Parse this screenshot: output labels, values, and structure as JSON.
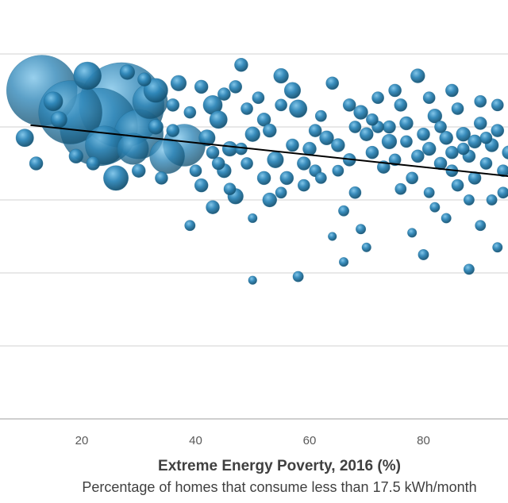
{
  "chart_data": {
    "type": "scatter",
    "subtype": "bubble",
    "xlabel": "Extreme Energy Poverty, 2016 (%)",
    "xlabel_sub": "Percentage of homes that consume less than 17.5 kWh/month",
    "ylabel": "",
    "x_ticks": [
      20,
      40,
      60,
      80
    ],
    "xlim": [
      7,
      95
    ],
    "ylim": [
      0,
      100
    ],
    "grid": true,
    "legend": "none",
    "colors": {
      "bubble": "#2e86b8",
      "bubble_dark": "#14506f",
      "trendline": "#000000",
      "grid": "#d9d9d9"
    },
    "trendline": {
      "x": [
        11,
        95
      ],
      "y": [
        80.5,
        66.5
      ]
    },
    "series": [
      {
        "points": [
          {
            "x": 13,
            "y": 90,
            "s": 9.0
          },
          {
            "x": 18,
            "y": 84,
            "s": 8.0
          },
          {
            "x": 27,
            "y": 86,
            "s": 11.0
          },
          {
            "x": 23,
            "y": 80,
            "s": 10.0
          },
          {
            "x": 30,
            "y": 78,
            "s": 6.0
          },
          {
            "x": 32,
            "y": 87,
            "s": 4.0
          },
          {
            "x": 35,
            "y": 72,
            "s": 4.0
          },
          {
            "x": 21,
            "y": 94,
            "s": 3.0
          },
          {
            "x": 24,
            "y": 75,
            "s": 4.5
          },
          {
            "x": 29,
            "y": 74,
            "s": 3.5
          },
          {
            "x": 33,
            "y": 90,
            "s": 2.5
          },
          {
            "x": 38,
            "y": 75,
            "s": 5.0
          },
          {
            "x": 15,
            "y": 87,
            "s": 1.8
          },
          {
            "x": 10,
            "y": 77,
            "s": 1.6
          },
          {
            "x": 12,
            "y": 70,
            "s": 1.0
          },
          {
            "x": 26,
            "y": 66,
            "s": 2.6
          },
          {
            "x": 37,
            "y": 92,
            "s": 1.3
          },
          {
            "x": 43,
            "y": 86,
            "s": 1.8
          },
          {
            "x": 44,
            "y": 82,
            "s": 1.6
          },
          {
            "x": 42,
            "y": 77,
            "s": 1.4
          },
          {
            "x": 46,
            "y": 74,
            "s": 1.2
          },
          {
            "x": 48,
            "y": 97,
            "s": 1.0
          },
          {
            "x": 55,
            "y": 94,
            "s": 1.2
          },
          {
            "x": 57,
            "y": 90,
            "s": 1.4
          },
          {
            "x": 58,
            "y": 85,
            "s": 1.6
          },
          {
            "x": 52,
            "y": 82,
            "s": 1.0
          },
          {
            "x": 50,
            "y": 78,
            "s": 1.2
          },
          {
            "x": 54,
            "y": 71,
            "s": 1.4
          },
          {
            "x": 56,
            "y": 66,
            "s": 1.0
          },
          {
            "x": 47,
            "y": 61,
            "s": 1.3
          },
          {
            "x": 53,
            "y": 60,
            "s": 1.1
          },
          {
            "x": 41,
            "y": 64,
            "s": 1.0
          },
          {
            "x": 44,
            "y": 70,
            "s": 0.9
          },
          {
            "x": 40,
            "y": 68,
            "s": 0.8
          },
          {
            "x": 36,
            "y": 86,
            "s": 0.9
          },
          {
            "x": 51,
            "y": 88,
            "s": 0.8
          },
          {
            "x": 60,
            "y": 74,
            "s": 1.0
          },
          {
            "x": 61,
            "y": 68,
            "s": 0.8
          },
          {
            "x": 62,
            "y": 83,
            "s": 0.7
          },
          {
            "x": 64,
            "y": 92,
            "s": 0.9
          },
          {
            "x": 65,
            "y": 75,
            "s": 1.0
          },
          {
            "x": 67,
            "y": 71,
            "s": 0.9
          },
          {
            "x": 68,
            "y": 62,
            "s": 0.8
          },
          {
            "x": 69,
            "y": 84,
            "s": 1.1
          },
          {
            "x": 70,
            "y": 78,
            "s": 1.0
          },
          {
            "x": 71,
            "y": 73,
            "s": 0.9
          },
          {
            "x": 72,
            "y": 80,
            "s": 0.8
          },
          {
            "x": 74,
            "y": 76,
            "s": 1.2
          },
          {
            "x": 75,
            "y": 71,
            "s": 0.8
          },
          {
            "x": 76,
            "y": 86,
            "s": 0.9
          },
          {
            "x": 77,
            "y": 81,
            "s": 1.0
          },
          {
            "x": 78,
            "y": 66,
            "s": 0.8
          },
          {
            "x": 79,
            "y": 94,
            "s": 1.1
          },
          {
            "x": 80,
            "y": 78,
            "s": 0.9
          },
          {
            "x": 81,
            "y": 74,
            "s": 1.0
          },
          {
            "x": 82,
            "y": 83,
            "s": 1.1
          },
          {
            "x": 83,
            "y": 70,
            "s": 0.9
          },
          {
            "x": 84,
            "y": 77,
            "s": 1.0
          },
          {
            "x": 85,
            "y": 73,
            "s": 0.9
          },
          {
            "x": 86,
            "y": 85,
            "s": 0.8
          },
          {
            "x": 87,
            "y": 78,
            "s": 1.1
          },
          {
            "x": 88,
            "y": 72,
            "s": 0.9
          },
          {
            "x": 89,
            "y": 76,
            "s": 1.0
          },
          {
            "x": 90,
            "y": 81,
            "s": 0.9
          },
          {
            "x": 91,
            "y": 70,
            "s": 0.8
          },
          {
            "x": 92,
            "y": 75,
            "s": 1.0
          },
          {
            "x": 93,
            "y": 79,
            "s": 0.9
          },
          {
            "x": 94,
            "y": 68,
            "s": 0.8
          },
          {
            "x": 95,
            "y": 73,
            "s": 1.0
          },
          {
            "x": 66,
            "y": 57,
            "s": 0.6
          },
          {
            "x": 69,
            "y": 52,
            "s": 0.5
          },
          {
            "x": 70,
            "y": 47,
            "s": 0.4
          },
          {
            "x": 66,
            "y": 43,
            "s": 0.4
          },
          {
            "x": 78,
            "y": 51,
            "s": 0.4
          },
          {
            "x": 80,
            "y": 45,
            "s": 0.6
          },
          {
            "x": 82,
            "y": 58,
            "s": 0.5
          },
          {
            "x": 84,
            "y": 55,
            "s": 0.5
          },
          {
            "x": 88,
            "y": 41,
            "s": 0.6
          },
          {
            "x": 90,
            "y": 53,
            "s": 0.6
          },
          {
            "x": 92,
            "y": 60,
            "s": 0.6
          },
          {
            "x": 93,
            "y": 47,
            "s": 0.5
          },
          {
            "x": 58,
            "y": 39,
            "s": 0.6
          },
          {
            "x": 50,
            "y": 38,
            "s": 0.3
          },
          {
            "x": 43,
            "y": 58,
            "s": 1.0
          },
          {
            "x": 39,
            "y": 53,
            "s": 0.6
          },
          {
            "x": 50,
            "y": 55,
            "s": 0.4
          },
          {
            "x": 64,
            "y": 50,
            "s": 0.3
          },
          {
            "x": 45,
            "y": 68,
            "s": 1.1
          },
          {
            "x": 52,
            "y": 66,
            "s": 1.0
          },
          {
            "x": 59,
            "y": 70,
            "s": 1.0
          },
          {
            "x": 63,
            "y": 77,
            "s": 1.1
          },
          {
            "x": 73,
            "y": 69,
            "s": 0.9
          },
          {
            "x": 86,
            "y": 64,
            "s": 0.8
          },
          {
            "x": 89,
            "y": 66,
            "s": 0.9
          },
          {
            "x": 94,
            "y": 62,
            "s": 0.7
          },
          {
            "x": 76,
            "y": 63,
            "s": 0.7
          },
          {
            "x": 33,
            "y": 80,
            "s": 1.2
          },
          {
            "x": 30,
            "y": 68,
            "s": 1.0
          },
          {
            "x": 34,
            "y": 66,
            "s": 0.9
          },
          {
            "x": 19,
            "y": 72,
            "s": 1.1
          },
          {
            "x": 16,
            "y": 82,
            "s": 1.4
          },
          {
            "x": 22,
            "y": 70,
            "s": 1.0
          },
          {
            "x": 28,
            "y": 95,
            "s": 1.2
          },
          {
            "x": 31,
            "y": 93,
            "s": 1.0
          },
          {
            "x": 41,
            "y": 91,
            "s": 1.0
          },
          {
            "x": 45,
            "y": 89,
            "s": 0.9
          },
          {
            "x": 49,
            "y": 85,
            "s": 0.8
          },
          {
            "x": 47,
            "y": 91,
            "s": 0.9
          },
          {
            "x": 55,
            "y": 86,
            "s": 0.8
          },
          {
            "x": 53,
            "y": 79,
            "s": 1.0
          },
          {
            "x": 57,
            "y": 75,
            "s": 0.9
          },
          {
            "x": 48,
            "y": 74,
            "s": 0.8
          },
          {
            "x": 46,
            "y": 63,
            "s": 0.8
          },
          {
            "x": 55,
            "y": 62,
            "s": 0.7
          },
          {
            "x": 59,
            "y": 64,
            "s": 0.8
          },
          {
            "x": 61,
            "y": 79,
            "s": 0.9
          },
          {
            "x": 67,
            "y": 86,
            "s": 0.9
          },
          {
            "x": 72,
            "y": 88,
            "s": 0.8
          },
          {
            "x": 75,
            "y": 90,
            "s": 0.9
          },
          {
            "x": 81,
            "y": 88,
            "s": 0.8
          },
          {
            "x": 85,
            "y": 90,
            "s": 0.9
          },
          {
            "x": 90,
            "y": 87,
            "s": 0.8
          },
          {
            "x": 93,
            "y": 86,
            "s": 0.8
          },
          {
            "x": 71,
            "y": 82,
            "s": 0.8
          },
          {
            "x": 74,
            "y": 80,
            "s": 0.9
          },
          {
            "x": 68,
            "y": 80,
            "s": 0.8
          },
          {
            "x": 77,
            "y": 76,
            "s": 0.8
          },
          {
            "x": 83,
            "y": 80,
            "s": 0.8
          },
          {
            "x": 87,
            "y": 74,
            "s": 0.8
          },
          {
            "x": 91,
            "y": 77,
            "s": 0.8
          },
          {
            "x": 79,
            "y": 72,
            "s": 0.9
          },
          {
            "x": 85,
            "y": 68,
            "s": 0.8
          },
          {
            "x": 88,
            "y": 60,
            "s": 0.6
          },
          {
            "x": 81,
            "y": 62,
            "s": 0.6
          },
          {
            "x": 62,
            "y": 66,
            "s": 0.7
          },
          {
            "x": 65,
            "y": 68,
            "s": 0.7
          },
          {
            "x": 36,
            "y": 79,
            "s": 0.9
          },
          {
            "x": 39,
            "y": 84,
            "s": 0.8
          },
          {
            "x": 43,
            "y": 73,
            "s": 0.9
          },
          {
            "x": 49,
            "y": 70,
            "s": 0.8
          }
        ]
      }
    ]
  }
}
